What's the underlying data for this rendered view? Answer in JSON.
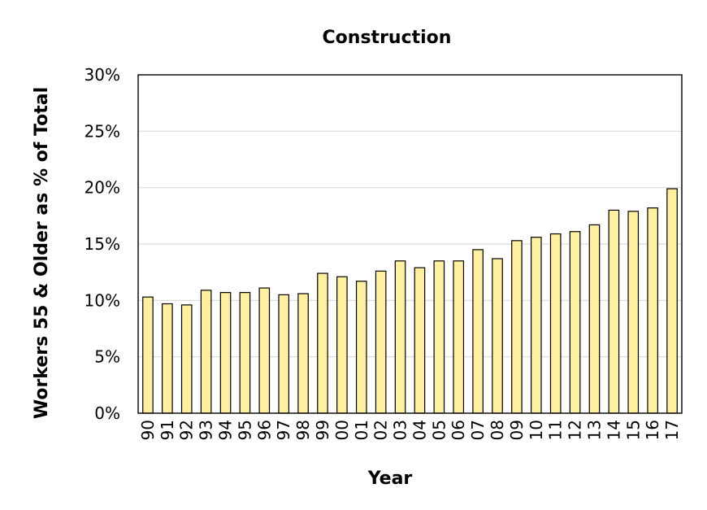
{
  "chart_data": {
    "type": "bar",
    "title": "Construction",
    "xlabel": "Year",
    "ylabel": "Workers 55 & Older as % of Total",
    "categories": [
      "90",
      "91",
      "92",
      "93",
      "94",
      "95",
      "96",
      "97",
      "98",
      "99",
      "00",
      "01",
      "02",
      "03",
      "04",
      "05",
      "06",
      "07",
      "08",
      "09",
      "10",
      "11",
      "12",
      "13",
      "14",
      "15",
      "16",
      "17"
    ],
    "values": [
      10.3,
      9.7,
      9.6,
      10.9,
      10.7,
      10.7,
      11.1,
      10.5,
      10.6,
      12.4,
      12.1,
      11.7,
      12.6,
      13.5,
      12.9,
      13.5,
      13.5,
      14.5,
      13.7,
      15.3,
      15.6,
      15.9,
      16.1,
      16.7,
      18.0,
      17.9,
      18.2,
      19.9
    ],
    "ylim": [
      0,
      30
    ],
    "yticks": [
      0,
      5,
      10,
      15,
      20,
      25,
      30
    ],
    "ytick_labels": [
      "0%",
      "5%",
      "10%",
      "15%",
      "20%",
      "25%",
      "30%"
    ],
    "grid": "horizontal",
    "bar_color": "#FFEFA1",
    "legend": "none"
  }
}
